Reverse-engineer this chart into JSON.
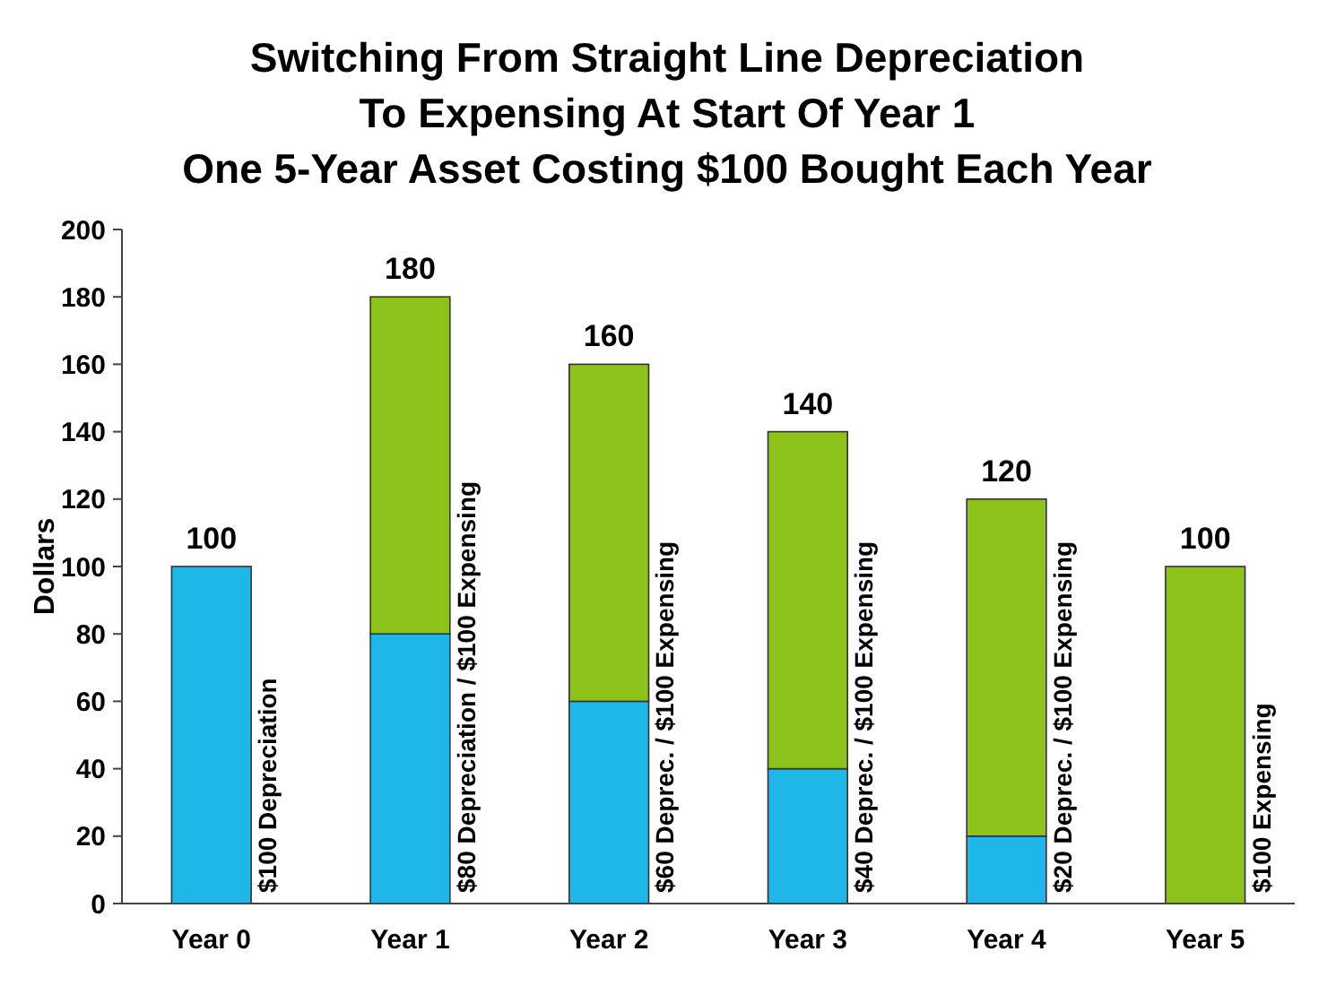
{
  "chart_data": {
    "type": "bar",
    "title": "Switching From Straight Line Depreciation\nTo Expensing At Start Of Year 1\nOne 5-Year Asset Costing $100 Bought Each Year",
    "ylabel": "Dollars",
    "categories": [
      "Year 0",
      "Year 1",
      "Year 2",
      "Year 3",
      "Year 4",
      "Year 5"
    ],
    "stacked": true,
    "series": [
      {
        "color": "#1fb6e8",
        "values": [
          100,
          80,
          60,
          40,
          20,
          0
        ]
      },
      {
        "color": "#8cc21a",
        "values": [
          0,
          100,
          100,
          100,
          100,
          100
        ]
      }
    ],
    "ylim": [
      0,
      200
    ],
    "yticks": [
      0,
      20,
      40,
      60,
      80,
      100,
      120,
      140,
      160,
      180,
      200
    ],
    "grid": false,
    "totals": [
      "100",
      "180",
      "160",
      "140",
      "120",
      "100"
    ],
    "annotations": [
      "$100 Depreciation",
      "$80 Depreciation  /  $100 Expensing",
      "$60 Deprec.  /  $100 Expensing",
      "$40 Deprec. / $100 Expensing",
      "$20 Deprec. / $100 Expensing",
      "$100 Expensing"
    ]
  }
}
